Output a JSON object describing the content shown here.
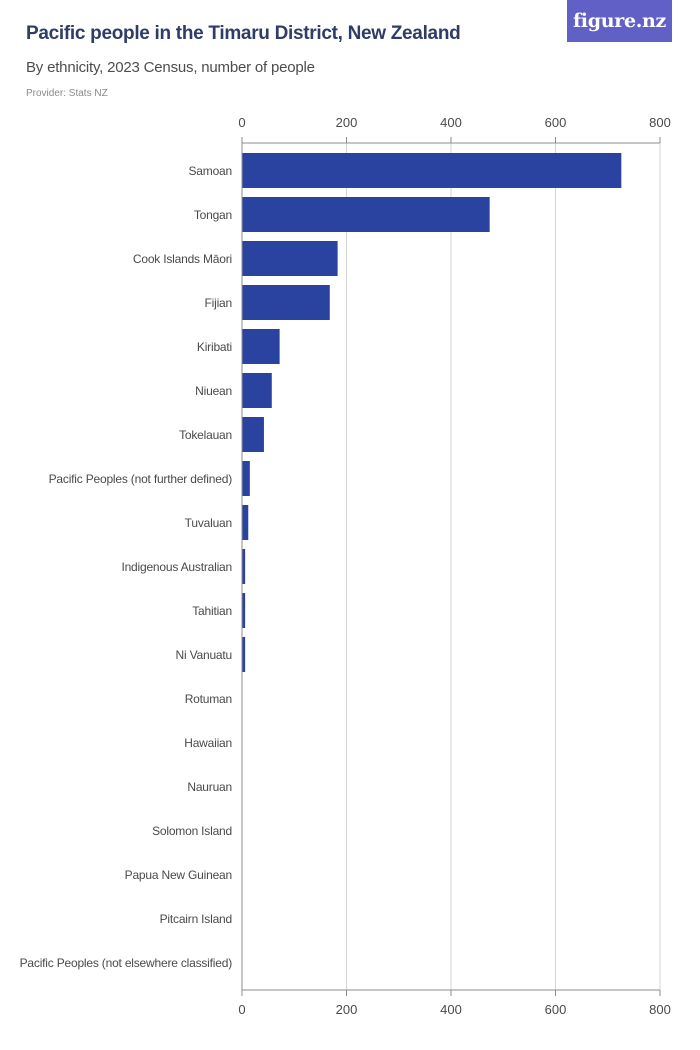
{
  "header": {
    "title": "Pacific people in the Timaru District, New Zealand",
    "subtitle": "By ethnicity, 2023 Census, number of people",
    "provider": "Provider: Stats NZ",
    "logo": "figure.nz"
  },
  "colors": {
    "bar": "#2b43a0",
    "grid": "#d5d5d5",
    "axis": "#8c8c8c",
    "label": "#4a4a4a",
    "title": "#2f3c68",
    "logo_bg": "#6160c6"
  },
  "chart_data": {
    "type": "bar",
    "orientation": "horizontal",
    "title": "Pacific people in the Timaru District, New Zealand",
    "subtitle": "By ethnicity, 2023 Census, number of people",
    "xlabel": "",
    "ylabel": "",
    "xlim": [
      0,
      800
    ],
    "ticks": [
      0,
      200,
      400,
      600,
      800
    ],
    "grid": true,
    "categories": [
      "Samoan",
      "Tongan",
      "Cook Islands Māori",
      "Fijian",
      "Kiribati",
      "Niuean",
      "Tokelauan",
      "Pacific Peoples (not further defined)",
      "Tuvaluan",
      "Indigenous Australian",
      "Tahitian",
      "Ni Vanuatu",
      "Rotuman",
      "Hawaiian",
      "Nauruan",
      "Solomon Island",
      "Papua New Guinean",
      "Pitcairn Island",
      "Pacific Peoples (not elsewhere classified)"
    ],
    "values": [
      726,
      474,
      183,
      168,
      72,
      57,
      42,
      15,
      12,
      6,
      6,
      6,
      0,
      0,
      0,
      0,
      0,
      0,
      0
    ]
  }
}
